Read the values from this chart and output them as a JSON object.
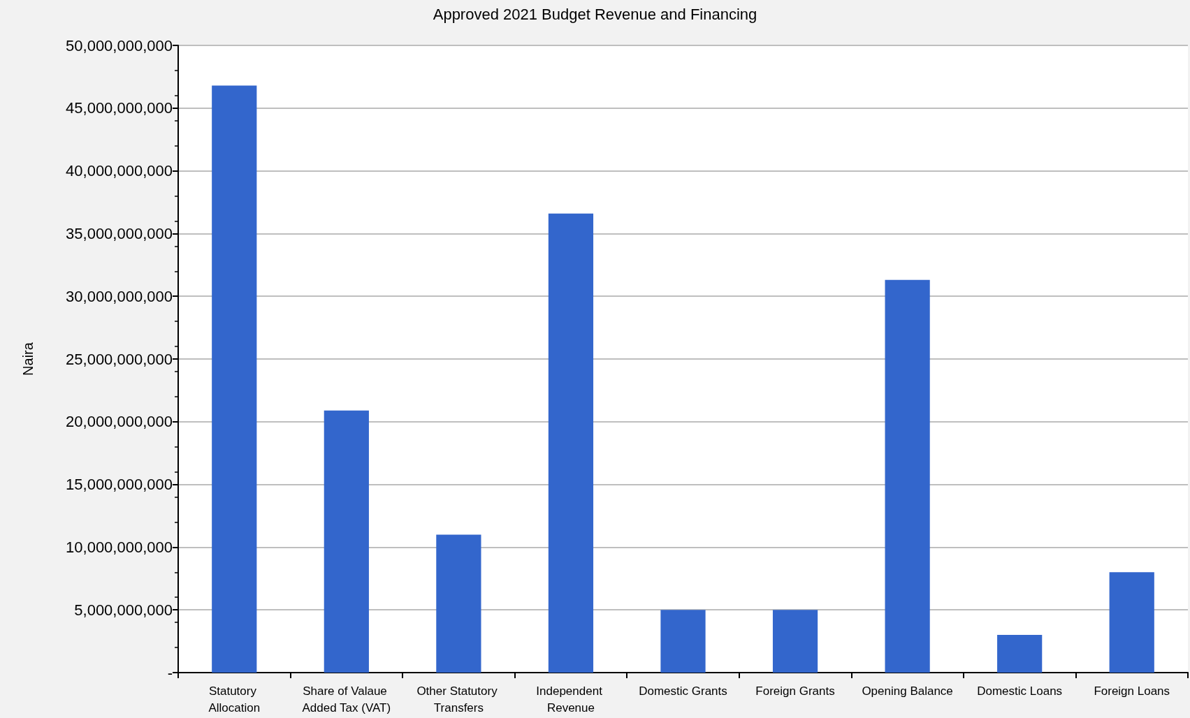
{
  "chart_data": {
    "type": "bar",
    "title": "Approved 2021 Budget Revenue and Financing",
    "ylabel": "Naira",
    "categories": [
      "Statutory Allocation",
      "Share of Valaue Added Tax (VAT)",
      "Other Statutory Transfers",
      "Independent Revenue",
      "Domestic Grants",
      "Foreign Grants",
      "Opening Balance",
      "Domestic Loans",
      "Foreign Loans"
    ],
    "values": [
      46800000000,
      20900000000,
      11000000000,
      36600000000,
      5000000000,
      5000000000,
      31300000000,
      3000000000,
      8000000000
    ],
    "color": "#3366cc",
    "ylim": [
      0,
      50000000000
    ],
    "yticks": [
      {
        "value": 0,
        "label": "-"
      },
      {
        "value": 5000000000,
        "label": "5,000,000,000"
      },
      {
        "value": 10000000000,
        "label": "10,000,000,000"
      },
      {
        "value": 15000000000,
        "label": "15,000,000,000"
      },
      {
        "value": 20000000000,
        "label": "20,000,000,000"
      },
      {
        "value": 25000000000,
        "label": "25,000,000,000"
      },
      {
        "value": 30000000000,
        "label": "30,000,000,000"
      },
      {
        "value": 35000000000,
        "label": "35,000,000,000"
      },
      {
        "value": 40000000000,
        "label": "40,000,000,000"
      },
      {
        "value": 45000000000,
        "label": "45,000,000,000"
      },
      {
        "value": 50000000000,
        "label": "50,000,000,000"
      }
    ],
    "grid": "y"
  }
}
